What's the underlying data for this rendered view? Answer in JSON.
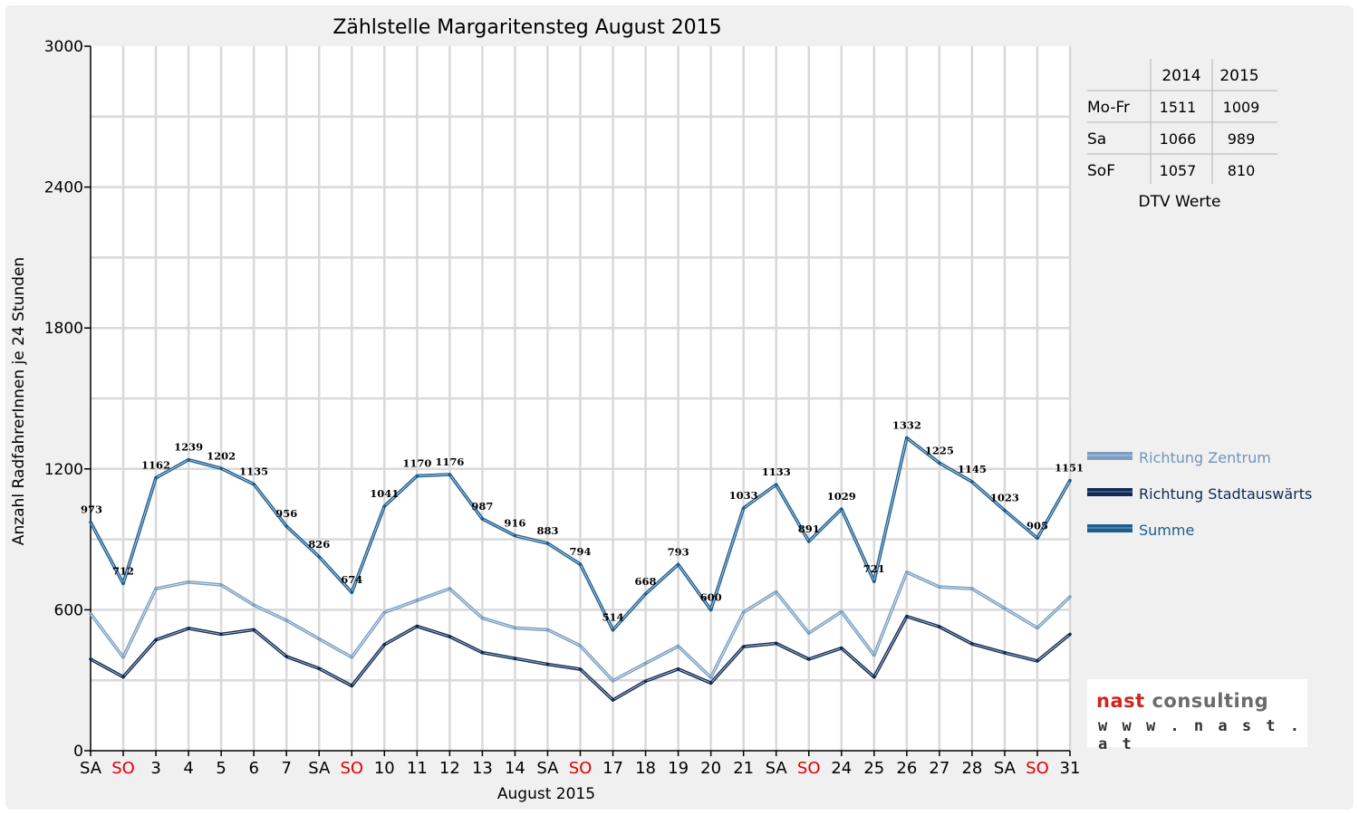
{
  "chart_data": {
    "type": "line",
    "title": "Zählstelle Margaritensteg August 2015",
    "xlabel": "August 2015",
    "ylabel": "Anzahl RadfahrerInnen je 24 Stunden",
    "ylim": [
      0,
      3000
    ],
    "yticks": [
      "0",
      "600",
      "1200",
      "1800",
      "2400",
      "3000"
    ],
    "grid": true,
    "legend_position": "right",
    "categories": [
      "SA",
      "SO",
      "3",
      "4",
      "5",
      "6",
      "7",
      "SA",
      "SO",
      "10",
      "11",
      "12",
      "13",
      "14",
      "SA",
      "SO",
      "17",
      "18",
      "19",
      "20",
      "21",
      "SA",
      "SO",
      "24",
      "25",
      "26",
      "27",
      "28",
      "SA",
      "SO",
      "31"
    ],
    "sunday_color": "#e00000",
    "series": [
      {
        "name": "Richtung Zentrum",
        "color": "#7b9fc2",
        "values": [
          583,
          398,
          690,
          718,
          706,
          620,
          555,
          476,
          398,
          589,
          640,
          690,
          565,
          523,
          515,
          447,
          298,
          372,
          445,
          312,
          590,
          676,
          501,
          592,
          407,
          760,
          697,
          690,
          606,
          523,
          655
        ]
      },
      {
        "name": "Richtung Stadtauswärts",
        "color": "#0f2a55",
        "values": [
          390,
          314,
          472,
          521,
          496,
          515,
          401,
          350,
          276,
          452,
          530,
          486,
          418,
          393,
          368,
          347,
          216,
          296,
          348,
          288,
          443,
          457,
          390,
          437,
          314,
          572,
          528,
          455,
          417,
          382,
          496
        ]
      },
      {
        "name": "Summe",
        "color": "#1c5d8f",
        "values": [
          973,
          712,
          1162,
          1239,
          1202,
          1135,
          956,
          826,
          674,
          1041,
          1170,
          1176,
          987,
          916,
          883,
          794,
          514,
          668,
          793,
          600,
          1033,
          1133,
          891,
          1029,
          721,
          1332,
          1225,
          1145,
          1023,
          905,
          1151
        ]
      }
    ],
    "data_labels": [
      "973",
      "712",
      "1162",
      "1239",
      "1202",
      "1135",
      "956",
      "826",
      "674",
      "1041",
      "1170",
      "1176",
      "987",
      "916",
      "883",
      "794",
      "514",
      "668",
      "793",
      "600",
      "1033",
      "1133",
      "891",
      "1029",
      "721",
      "1332",
      "1225",
      "1145",
      "1023",
      "905",
      "1151"
    ]
  },
  "dtv_table": {
    "caption": "DTV Werte",
    "header": [
      "",
      "2014",
      "2015"
    ],
    "rows": [
      [
        "Mo-Fr",
        "1511",
        "1009"
      ],
      [
        "Sa",
        "1066",
        "989"
      ],
      [
        "SoF",
        "1057",
        "810"
      ]
    ]
  },
  "logo": {
    "brand_part1": "nast",
    "brand_part2": "consulting",
    "url": "w w w . n a s t . a t",
    "colors": {
      "brand_red": "#d0261d",
      "brand_grey": "#6b6b6b"
    }
  }
}
